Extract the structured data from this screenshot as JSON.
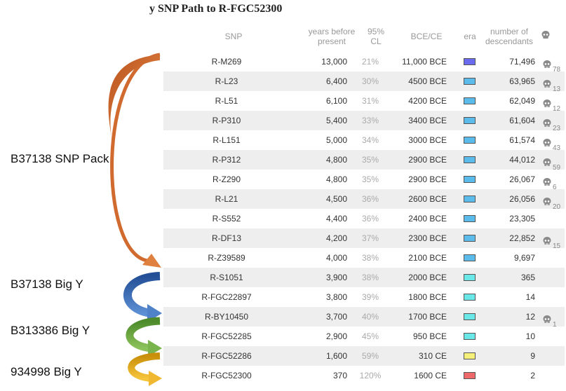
{
  "title": "y SNP Path to R-FGC52300",
  "headers": {
    "snp": "SNP",
    "years_l1": "years before",
    "years_l2": "present",
    "cl_l1": "95%",
    "cl_l2": "CL",
    "bce": "BCE/CE",
    "era": "era",
    "desc_l1": "number of",
    "desc_l2": "descendants"
  },
  "labels": {
    "snp_pack": "B37138 SNP Pack",
    "big_y_1": "B37138 Big Y",
    "big_y_2": "B313386 Big Y",
    "big_y_3": "934998 Big Y"
  },
  "rows": [
    {
      "snp": "R-M269",
      "years": "13,000",
      "cl": "21%",
      "date": "11,000 BCE",
      "era_color": "#6b6bef",
      "descendants": "71,496",
      "tested": "78"
    },
    {
      "snp": "R-L23",
      "years": "6,400",
      "cl": "30%",
      "date": "4500 BCE",
      "era_color": "#5bbcec",
      "descendants": "63,965",
      "tested": "13"
    },
    {
      "snp": "R-L51",
      "years": "6,100",
      "cl": "31%",
      "date": "4200 BCE",
      "era_color": "#5bbcec",
      "descendants": "62,049",
      "tested": "12"
    },
    {
      "snp": "R-P310",
      "years": "5,400",
      "cl": "33%",
      "date": "3400 BCE",
      "era_color": "#5bbcec",
      "descendants": "61,604",
      "tested": "23"
    },
    {
      "snp": "R-L151",
      "years": "5,000",
      "cl": "34%",
      "date": "3000 BCE",
      "era_color": "#5bbcec",
      "descendants": "61,574",
      "tested": "43"
    },
    {
      "snp": "R-P312",
      "years": "4,800",
      "cl": "35%",
      "date": "2900 BCE",
      "era_color": "#5bbcec",
      "descendants": "44,012",
      "tested": "59"
    },
    {
      "snp": "R-Z290",
      "years": "4,800",
      "cl": "35%",
      "date": "2900 BCE",
      "era_color": "#5bbcec",
      "descendants": "26,067",
      "tested": "6"
    },
    {
      "snp": "R-L21",
      "years": "4,500",
      "cl": "36%",
      "date": "2600 BCE",
      "era_color": "#5bbcec",
      "descendants": "26,056",
      "tested": "20"
    },
    {
      "snp": "R-S552",
      "years": "4,400",
      "cl": "36%",
      "date": "2400 BCE",
      "era_color": "#5bbcec",
      "descendants": "23,305",
      "tested": ""
    },
    {
      "snp": "R-DF13",
      "years": "4,200",
      "cl": "37%",
      "date": "2300 BCE",
      "era_color": "#5bbcec",
      "descendants": "22,852",
      "tested": "15"
    },
    {
      "snp": "R-Z39589",
      "years": "4,000",
      "cl": "38%",
      "date": "2100 BCE",
      "era_color": "#5bbcec",
      "descendants": "9,697",
      "tested": ""
    },
    {
      "snp": "R-S1051",
      "years": "3,900",
      "cl": "38%",
      "date": "2000 BCE",
      "era_color": "#6ae8e8",
      "descendants": "365",
      "tested": ""
    },
    {
      "snp": "R-FGC22897",
      "years": "3,800",
      "cl": "39%",
      "date": "1800 BCE",
      "era_color": "#6ae8e8",
      "descendants": "14",
      "tested": ""
    },
    {
      "snp": "R-BY10450",
      "years": "3,700",
      "cl": "40%",
      "date": "1700 BCE",
      "era_color": "#6ae8e8",
      "descendants": "12",
      "tested": "1"
    },
    {
      "snp": "R-FGC52285",
      "years": "2,900",
      "cl": "45%",
      "date": "950 BCE",
      "era_color": "#6ae8e8",
      "descendants": "10",
      "tested": ""
    },
    {
      "snp": "R-FGC52286",
      "years": "1,600",
      "cl": "59%",
      "date": "310  CE",
      "era_color": "#f5f07a",
      "descendants": "9",
      "tested": ""
    },
    {
      "snp": "R-FGC52300",
      "years": "370",
      "cl": "120%",
      "date": "1600  CE",
      "era_color": "#ee6a6a",
      "descendants": "2",
      "tested": ""
    }
  ],
  "colors": {
    "arrow_orange": "#d06a2e",
    "arrow_blue": "#2f5ea8",
    "arrow_green": "#5f9a3a",
    "arrow_gold": "#e0a81a"
  }
}
